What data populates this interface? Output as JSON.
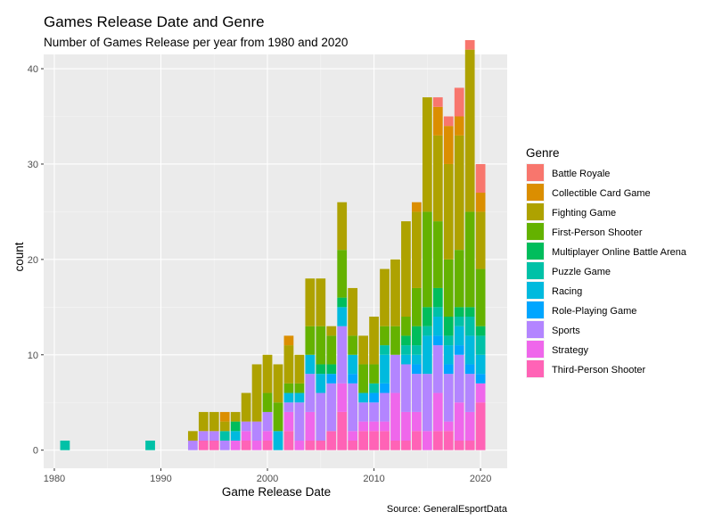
{
  "chart_data": {
    "type": "bar",
    "stacked": true,
    "title": "Games Release Date and Genre",
    "subtitle": "Number of Games Release per year from 1980 and 2020",
    "xlabel": "Game Release Date",
    "ylabel": "count",
    "caption": "Source: GeneralEsportData",
    "xlim": [
      1979,
      2022.5
    ],
    "ylim": [
      -1.9,
      41.5
    ],
    "xticks": [
      1980,
      1990,
      2000,
      2010,
      2020
    ],
    "yticks": [
      0,
      10,
      20,
      30,
      40
    ],
    "grid": true,
    "legend_position": "right",
    "legend_title": "Genre",
    "x": [
      1981,
      1989,
      1993,
      1994,
      1995,
      1996,
      1997,
      1998,
      1999,
      2000,
      2001,
      2002,
      2003,
      2004,
      2005,
      2006,
      2007,
      2008,
      2009,
      2010,
      2011,
      2012,
      2013,
      2014,
      2015,
      2016,
      2017,
      2018,
      2019,
      2020
    ],
    "series": [
      {
        "name": "Battle Royale",
        "color": "#F8766D",
        "values": [
          0,
          0,
          0,
          0,
          0,
          0,
          0,
          0,
          0,
          0,
          0,
          0,
          0,
          0,
          0,
          0,
          0,
          0,
          0,
          0,
          0,
          0,
          0,
          0,
          0,
          1,
          1,
          3,
          1,
          3
        ]
      },
      {
        "name": "Collectible Card Game",
        "color": "#DB8E00",
        "values": [
          0,
          0,
          0,
          0,
          0,
          1,
          0,
          0,
          0,
          0,
          0,
          1,
          0,
          0,
          0,
          0,
          0,
          0,
          0,
          0,
          0,
          0,
          0,
          1,
          0,
          3,
          4,
          2,
          0,
          2
        ]
      },
      {
        "name": "Fighting Game",
        "color": "#AEA200",
        "values": [
          0,
          0,
          1,
          2,
          2,
          1,
          1,
          3,
          6,
          4,
          4,
          4,
          3,
          5,
          5,
          1,
          5,
          5,
          3,
          5,
          6,
          7,
          10,
          8,
          12,
          9,
          10,
          12,
          17,
          6
        ]
      },
      {
        "name": "First-Person Shooter",
        "color": "#64B200",
        "values": [
          0,
          0,
          0,
          0,
          0,
          0,
          0,
          0,
          0,
          2,
          3,
          1,
          1,
          3,
          4,
          3,
          5,
          2,
          3,
          2,
          2,
          3,
          2,
          4,
          10,
          7,
          6,
          6,
          10,
          6
        ]
      },
      {
        "name": "Multiplayer Online Battle Arena",
        "color": "#00BD5C",
        "values": [
          0,
          0,
          0,
          0,
          0,
          0,
          1,
          0,
          0,
          0,
          0,
          0,
          0,
          0,
          1,
          1,
          1,
          0,
          0,
          0,
          0,
          0,
          1,
          2,
          2,
          2,
          2,
          1,
          1,
          1
        ]
      },
      {
        "name": "Puzzle Game",
        "color": "#00C1A7",
        "values": [
          1,
          1,
          0,
          0,
          0,
          1,
          0,
          0,
          0,
          0,
          0,
          0,
          0,
          0,
          0,
          0,
          0,
          0,
          0,
          1,
          1,
          0,
          1,
          1,
          1,
          1,
          1,
          1,
          2,
          2
        ]
      },
      {
        "name": "Racing",
        "color": "#00BADE",
        "values": [
          0,
          0,
          0,
          0,
          0,
          0,
          1,
          0,
          0,
          0,
          2,
          1,
          1,
          2,
          2,
          0,
          2,
          2,
          1,
          0,
          3,
          0,
          1,
          1,
          4,
          2,
          2,
          2,
          3,
          2
        ]
      },
      {
        "name": "Role-Playing Game",
        "color": "#00A6FF",
        "values": [
          0,
          0,
          0,
          0,
          0,
          0,
          0,
          0,
          0,
          0,
          0,
          0,
          0,
          0,
          0,
          1,
          0,
          1,
          0,
          1,
          1,
          0,
          0,
          1,
          0,
          1,
          1,
          1,
          1,
          1
        ]
      },
      {
        "name": "Sports",
        "color": "#B385FF",
        "values": [
          0,
          0,
          1,
          1,
          1,
          1,
          0,
          1,
          2,
          2,
          0,
          1,
          4,
          4,
          5,
          5,
          6,
          5,
          2,
          2,
          3,
          4,
          5,
          4,
          6,
          5,
          5,
          5,
          4,
          0
        ]
      },
      {
        "name": "Strategy",
        "color": "#EF67EB",
        "values": [
          0,
          0,
          0,
          0,
          0,
          0,
          1,
          1,
          1,
          1,
          0,
          2,
          1,
          3,
          0,
          0,
          3,
          1,
          1,
          1,
          1,
          5,
          3,
          2,
          2,
          4,
          1,
          4,
          3,
          2
        ]
      },
      {
        "name": "Third-Person Shooter",
        "color": "#FF63B6",
        "values": [
          0,
          0,
          0,
          1,
          1,
          0,
          0,
          1,
          0,
          1,
          0,
          2,
          0,
          1,
          1,
          2,
          4,
          1,
          2,
          2,
          2,
          1,
          1,
          2,
          0,
          2,
          2,
          1,
          1,
          5
        ]
      }
    ]
  }
}
